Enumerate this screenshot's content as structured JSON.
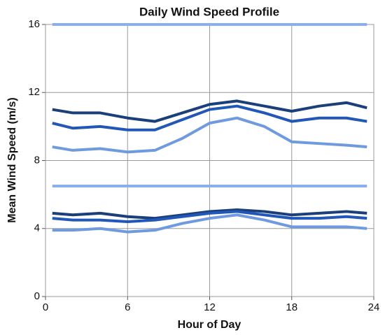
{
  "chart_data": {
    "type": "line",
    "title": "Daily Wind Speed Profile",
    "x_label": "Hour of Day",
    "y_label": "Mean Wind Speed (m/s)",
    "x": [
      0.5,
      2,
      4,
      6,
      8,
      10,
      12,
      14,
      16,
      18,
      20,
      22,
      23.5
    ],
    "series": [
      {
        "color": "#8aaef0",
        "values": [
          16,
          16,
          16,
          16,
          16,
          16,
          16,
          16,
          16,
          16,
          16,
          16,
          16
        ]
      },
      {
        "color": "#1a3f7a",
        "values": [
          11.0,
          10.8,
          10.8,
          10.5,
          10.3,
          10.8,
          11.3,
          11.5,
          11.2,
          10.9,
          11.2,
          11.4,
          11.1
        ]
      },
      {
        "color": "#2158b8",
        "values": [
          10.2,
          9.9,
          10.0,
          9.8,
          9.8,
          10.4,
          11.0,
          11.2,
          10.8,
          10.3,
          10.5,
          10.5,
          10.3
        ]
      },
      {
        "color": "#6f9ae0",
        "values": [
          8.8,
          8.6,
          8.7,
          8.5,
          8.6,
          9.3,
          10.2,
          10.5,
          10.0,
          9.1,
          9.0,
          8.9,
          8.8
        ]
      },
      {
        "color": "#8aaef0",
        "values": [
          6.5,
          6.5,
          6.5,
          6.5,
          6.5,
          6.5,
          6.5,
          6.5,
          6.5,
          6.5,
          6.5,
          6.5,
          6.5
        ]
      },
      {
        "color": "#1a3f7a",
        "values": [
          4.9,
          4.8,
          4.9,
          4.7,
          4.6,
          4.8,
          5.0,
          5.1,
          5.0,
          4.8,
          4.9,
          5.0,
          4.9
        ]
      },
      {
        "color": "#2158b8",
        "values": [
          4.6,
          4.5,
          4.5,
          4.4,
          4.5,
          4.7,
          4.9,
          5.0,
          4.8,
          4.6,
          4.6,
          4.7,
          4.6
        ]
      },
      {
        "color": "#6f9ae0",
        "values": [
          3.9,
          3.9,
          4.0,
          3.8,
          3.9,
          4.3,
          4.6,
          4.8,
          4.5,
          4.1,
          4.1,
          4.1,
          4.0
        ]
      }
    ],
    "xlim": [
      0,
      24
    ],
    "xticks": [
      0,
      6,
      12,
      18,
      24
    ],
    "ylim": [
      0,
      16
    ],
    "yticks": [
      0,
      4,
      8,
      12,
      16
    ],
    "grid": true
  }
}
